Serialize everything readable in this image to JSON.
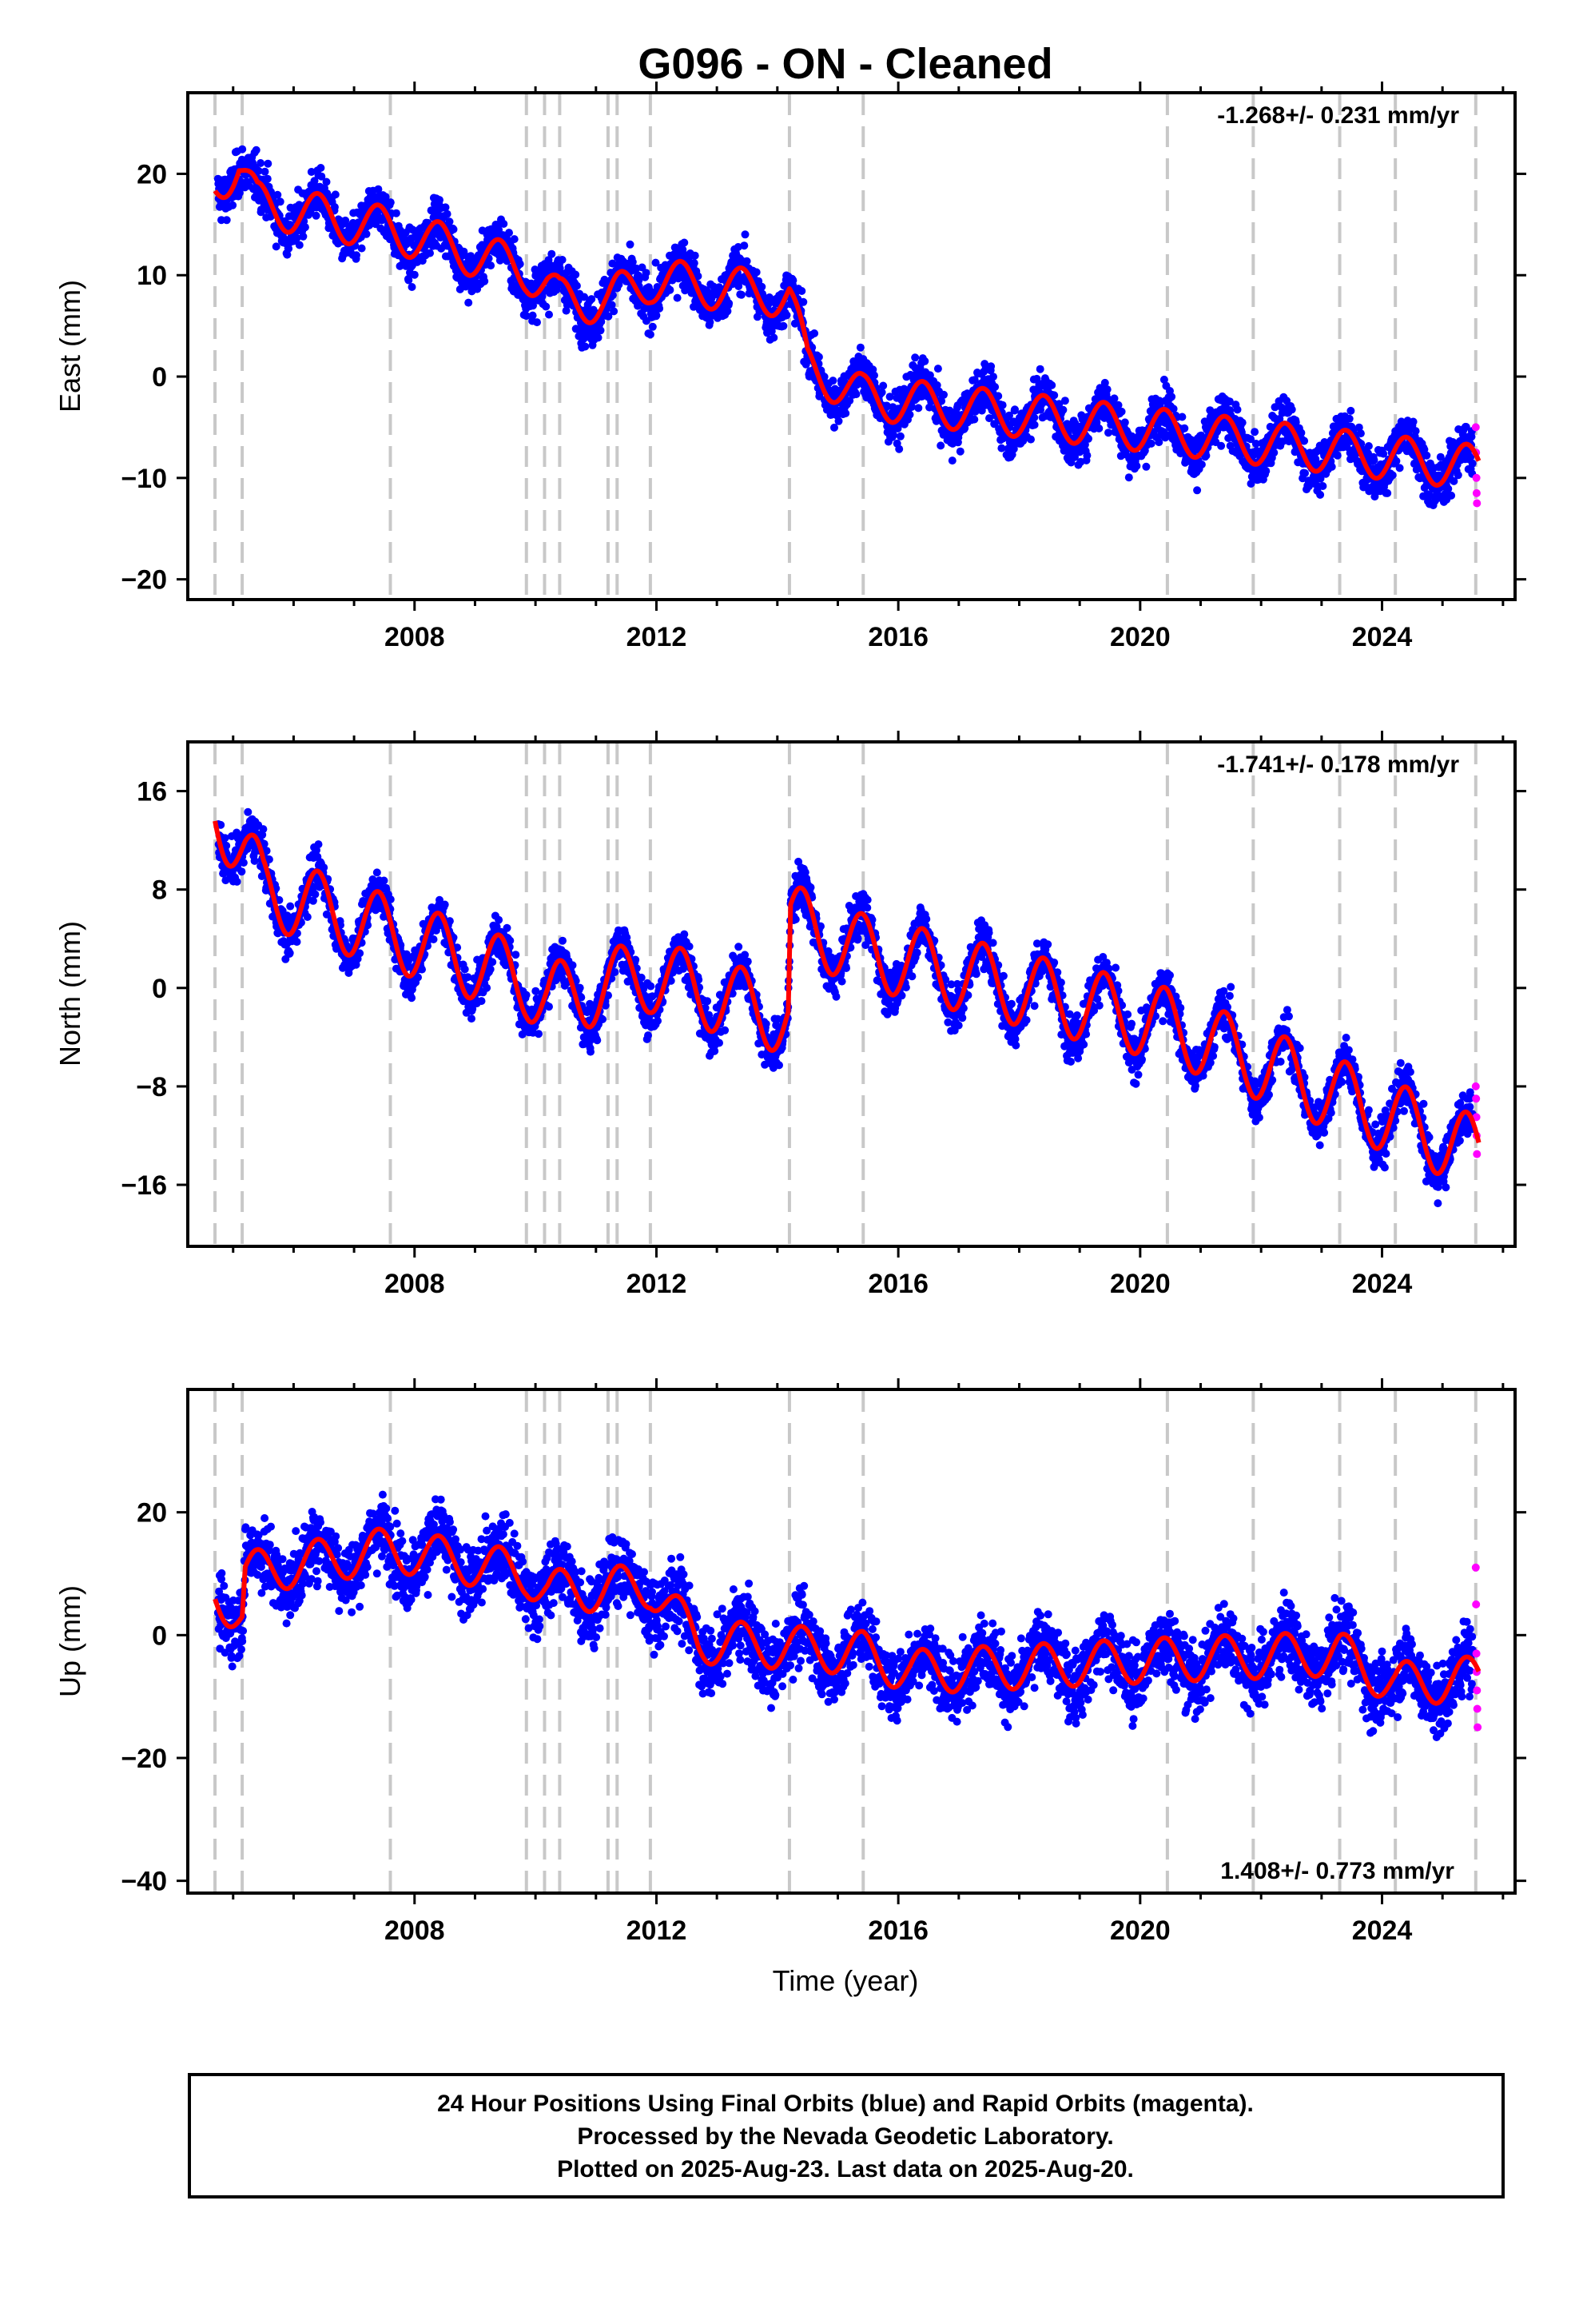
{
  "title": "G096  - ON - Cleaned",
  "xlabel": "Time (year)",
  "footer": {
    "lines": [
      "24 Hour Positions Using Final Orbits (blue) and Rapid Orbits (magenta).",
      "Processed by the Nevada Geodetic Laboratory.",
      "Plotted on 2025-Aug-23. Last data on 2025-Aug-20."
    ]
  },
  "colors": {
    "final_orbits": "#0000ff",
    "rapid_orbits": "#ff00ff",
    "model": "#ff0000",
    "events": "#c8c8c8"
  },
  "event_years": [
    2004.7,
    2005.15,
    2007.6,
    2009.85,
    2010.15,
    2010.4,
    2011.2,
    2011.35,
    2011.9,
    2014.2,
    2015.42,
    2020.45,
    2021.87,
    2023.3,
    2024.22,
    2025.55
  ],
  "chart_data": [
    {
      "type": "scatter",
      "ylabel": "East (mm)",
      "rate_text": "-1.268+/- 0.231 mm/yr",
      "rate_position": "top-right",
      "xlim": [
        2004.25,
        2026.2
      ],
      "ylim": [
        -22,
        28
      ],
      "xticks": [
        2008,
        2012,
        2016,
        2020,
        2024
      ],
      "yticks": [
        -20,
        -10,
        0,
        10,
        20
      ],
      "trend": {
        "x": [
          2004.7,
          2005.1,
          2005.4,
          2007.6,
          2009.85,
          2010.2,
          2010.4,
          2011.2,
          2011.35,
          2011.9,
          2014.2,
          2014.5,
          2015.42,
          2025.6
        ],
        "y": [
          19,
          21,
          17,
          14.5,
          10.5,
          9,
          7.5,
          7.5,
          8,
          9.5,
          8,
          1,
          -2,
          -9
        ]
      },
      "seasonal_amplitude": 2.2,
      "scatter_spread": 2.3,
      "rapid_values": [
        -5,
        -7.5,
        -10,
        -11.5,
        -12.5
      ]
    },
    {
      "type": "scatter",
      "ylabel": "North (mm)",
      "rate_text": "-1.741+/- 0.178 mm/yr",
      "rate_position": "top-right",
      "xlim": [
        2004.25,
        2026.2
      ],
      "ylim": [
        -21,
        20
      ],
      "xticks": [
        2008,
        2012,
        2016,
        2020,
        2024
      ],
      "yticks": [
        -16,
        -8,
        0,
        8,
        16
      ],
      "trend": {
        "x": [
          2004.7,
          2005.2,
          2005.5,
          2007.6,
          2009.85,
          2010.2,
          2011.9,
          2014.18,
          2014.22,
          2015.42,
          2020.45,
          2025.6
        ],
        "y": [
          14.5,
          11,
          8,
          4.5,
          0.5,
          -1,
          1,
          -2.5,
          5.5,
          3,
          -3,
          -13.5
        ]
      },
      "seasonal_amplitude": 3,
      "scatter_spread": 1.8,
      "rapid_values": [
        -8,
        -9,
        -10.5,
        -12,
        -13.5
      ]
    },
    {
      "type": "scatter",
      "ylabel": "Up (mm)",
      "rate_text": "1.408+/- 0.773 mm/yr",
      "rate_position": "bottom-right",
      "xlim": [
        2004.25,
        2026.2
      ],
      "ylim": [
        -42,
        40
      ],
      "xticks": [
        2008,
        2012,
        2016,
        2020,
        2024
      ],
      "yticks": [
        -40,
        -20,
        0,
        20
      ],
      "trend": {
        "x": [
          2004.7,
          2005.15,
          2005.2,
          2007.6,
          2009.85,
          2010.2,
          2011.9,
          2012.7,
          2014.2,
          2015.42,
          2016.2,
          2020.45,
          2023.3,
          2024.22,
          2025.6
        ],
        "y": [
          7,
          3,
          10,
          14,
          10,
          7,
          8,
          -1,
          -2,
          -3,
          -6,
          -4,
          -3,
          -8,
          -7
        ]
      },
      "seasonal_amplitude": 3.6,
      "scatter_spread": 5.5,
      "rapid_values": [
        11,
        5,
        -3,
        -6,
        -9,
        -12,
        -15
      ]
    }
  ]
}
